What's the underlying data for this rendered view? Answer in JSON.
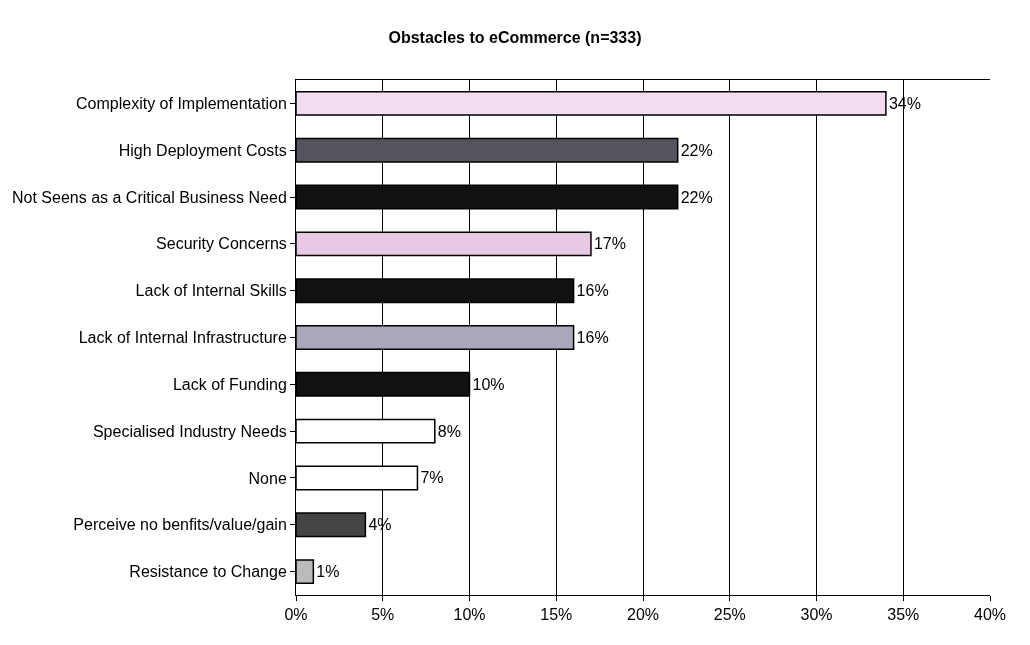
{
  "chart_data": {
    "type": "bar",
    "orientation": "horizontal",
    "title": "Obstacles to eCommerce (n=333)",
    "categories": [
      "Complexity of Implementation",
      "High Deployment Costs",
      "Not Seens as a Critical Business Need",
      "Security Concerns",
      "Lack of Internal Skills",
      "Lack of Internal Infrastructure",
      "Lack of Funding",
      "Specialised Industry Needs",
      "None",
      "Perceive no benfits/value/gain",
      "Resistance to Change"
    ],
    "values": [
      34,
      22,
      22,
      17,
      16,
      16,
      10,
      8,
      7,
      4,
      1
    ],
    "value_labels": [
      "34%",
      "22%",
      "22%",
      "17%",
      "16%",
      "16%",
      "10%",
      "8%",
      "7%",
      "4%",
      "1%"
    ],
    "colors": [
      "#f2dcef",
      "#54545e",
      "#111111",
      "#e8c8e2",
      "#111111",
      "#a9a7ba",
      "#111111",
      "#ffffff",
      "#ffffff",
      "#444444",
      "#bbbbbb"
    ],
    "xlim": [
      0,
      40
    ],
    "xticks": [
      {
        "value": 0,
        "label": "0%"
      },
      {
        "value": 5,
        "label": "5%"
      },
      {
        "value": 10,
        "label": "10%"
      },
      {
        "value": 15,
        "label": "15%"
      },
      {
        "value": 20,
        "label": "20%"
      },
      {
        "value": 25,
        "label": "25%"
      },
      {
        "value": 30,
        "label": "30%"
      },
      {
        "value": 35,
        "label": "35%"
      },
      {
        "value": 40,
        "label": "40%"
      }
    ],
    "grid": "x",
    "legend": false
  }
}
